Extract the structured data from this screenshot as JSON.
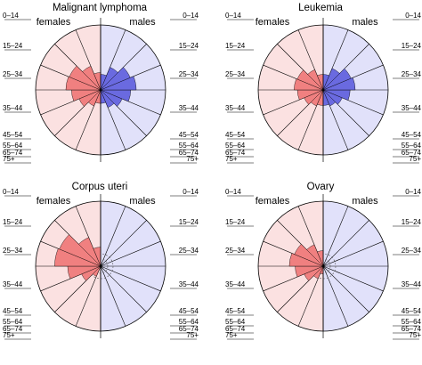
{
  "chart_data": [
    {
      "type": "bar",
      "title": "Malignant lymphoma",
      "side_labels": {
        "left": "females",
        "right": "males"
      },
      "categories": [
        "0–14",
        "15–24",
        "25–34",
        "35–44",
        "45–54",
        "55–64",
        "65–74",
        "75+"
      ],
      "series": [
        {
          "name": "females",
          "values": [
            0.03,
            0.05,
            0.09,
            0.14,
            0.2,
            0.19,
            0.11,
            0.05
          ]
        },
        {
          "name": "males",
          "values": [
            0.03,
            0.06,
            0.09,
            0.15,
            0.21,
            0.17,
            0.1,
            0.04
          ]
        }
      ]
    },
    {
      "type": "bar",
      "title": "Leukemia",
      "side_labels": {
        "left": "females",
        "right": "males"
      },
      "categories": [
        "0–14",
        "15–24",
        "25–34",
        "35–44",
        "45–54",
        "55–64",
        "65–74",
        "75+"
      ],
      "series": [
        {
          "name": "females",
          "values": [
            0.04,
            0.05,
            0.07,
            0.11,
            0.14,
            0.13,
            0.08,
            0.04
          ]
        },
        {
          "name": "males",
          "values": [
            0.04,
            0.05,
            0.07,
            0.12,
            0.17,
            0.15,
            0.09,
            0.04
          ]
        }
      ]
    },
    {
      "type": "bar",
      "title": "Corpus uteri",
      "side_labels": {
        "left": "females",
        "right": "males"
      },
      "categories": [
        "0–14",
        "15–24",
        "25–34",
        "35–44",
        "45–54",
        "55–64",
        "65–74",
        "75+"
      ],
      "series": [
        {
          "name": "females",
          "values": [
            0.0,
            0.02,
            0.07,
            0.18,
            0.35,
            0.33,
            0.16,
            0.06
          ]
        },
        {
          "name": "males",
          "values": [
            0,
            0,
            0,
            0,
            0,
            0,
            0,
            0
          ]
        }
      ]
    },
    {
      "type": "bar",
      "title": "Ovary",
      "side_labels": {
        "left": "females",
        "right": "males"
      },
      "categories": [
        "0–14",
        "15–24",
        "25–34",
        "35–44",
        "45–54",
        "55–64",
        "65–74",
        "75+"
      ],
      "series": [
        {
          "name": "females",
          "values": [
            0.01,
            0.03,
            0.07,
            0.13,
            0.19,
            0.16,
            0.09,
            0.04
          ]
        },
        {
          "name": "males",
          "values": [
            0,
            0,
            0,
            0,
            0,
            0,
            0,
            0
          ]
        }
      ]
    }
  ],
  "colors": {
    "female_fill": "#fbe1e1",
    "male_fill": "#e1e1fa",
    "female_bar": "#f08080",
    "male_bar": "#6a6ae0",
    "female_bar_dark": "#d62020",
    "male_bar_dark": "#2020c0"
  }
}
